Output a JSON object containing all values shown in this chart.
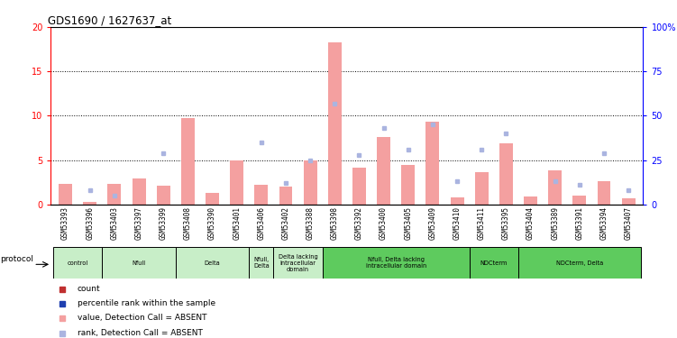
{
  "title": "GDS1690 / 1627637_at",
  "samples": [
    "GSM53393",
    "GSM53396",
    "GSM53403",
    "GSM53397",
    "GSM53399",
    "GSM53408",
    "GSM53390",
    "GSM53401",
    "GSM53406",
    "GSM53402",
    "GSM53388",
    "GSM53398",
    "GSM53392",
    "GSM53400",
    "GSM53405",
    "GSM53409",
    "GSM53410",
    "GSM53411",
    "GSM53395",
    "GSM53404",
    "GSM53389",
    "GSM53391",
    "GSM53394",
    "GSM53407"
  ],
  "bar_values": [
    2.3,
    0.3,
    2.3,
    2.9,
    2.1,
    9.7,
    1.3,
    5.0,
    2.2,
    2.0,
    5.0,
    18.3,
    4.2,
    7.6,
    4.5,
    9.3,
    0.8,
    3.6,
    6.9,
    0.9,
    3.8,
    1.0,
    2.6,
    0.7
  ],
  "rank_values": [
    0,
    8,
    5,
    0,
    29,
    0,
    0,
    0,
    35,
    12,
    25,
    57,
    28,
    43,
    31,
    45,
    13,
    31,
    40,
    0,
    13,
    11,
    29,
    8
  ],
  "absent_bar": [
    true,
    true,
    true,
    true,
    true,
    true,
    true,
    true,
    true,
    true,
    true,
    true,
    true,
    true,
    true,
    true,
    true,
    true,
    true,
    true,
    true,
    true,
    true,
    true
  ],
  "absent_rank": [
    false,
    true,
    true,
    false,
    true,
    false,
    false,
    false,
    true,
    true,
    true,
    true,
    true,
    true,
    true,
    true,
    true,
    true,
    true,
    false,
    true,
    true,
    true,
    true
  ],
  "groups": [
    {
      "label": "control",
      "start": 0,
      "end": 2,
      "color": "#c8eec8"
    },
    {
      "label": "Nfull",
      "start": 2,
      "end": 5,
      "color": "#c8eec8"
    },
    {
      "label": "Delta",
      "start": 5,
      "end": 8,
      "color": "#c8eec8"
    },
    {
      "label": "Nfull,\nDelta",
      "start": 8,
      "end": 9,
      "color": "#c8eec8"
    },
    {
      "label": "Delta lacking\nintracellular\ndomain",
      "start": 9,
      "end": 11,
      "color": "#c8eec8"
    },
    {
      "label": "Nfull, Delta lacking\nintracellular domain",
      "start": 11,
      "end": 17,
      "color": "#5ecb5e"
    },
    {
      "label": "NDCterm",
      "start": 17,
      "end": 19,
      "color": "#5ecb5e"
    },
    {
      "label": "NDCterm, Delta",
      "start": 19,
      "end": 24,
      "color": "#5ecb5e"
    }
  ],
  "ylim_left": [
    0,
    20
  ],
  "ylim_right": [
    0,
    100
  ],
  "yticks_left": [
    0,
    5,
    10,
    15,
    20
  ],
  "yticks_right": [
    0,
    25,
    50,
    75,
    100
  ],
  "bar_color_absent": "#f4a0a0",
  "bar_color_present": "#c03030",
  "rank_color_absent": "#aab4e0",
  "rank_color_present": "#2040b0",
  "legend_items": [
    {
      "color": "#c03030",
      "label": "count",
      "marker": "s"
    },
    {
      "color": "#2040b0",
      "label": "percentile rank within the sample",
      "marker": "s"
    },
    {
      "color": "#f4a0a0",
      "label": "value, Detection Call = ABSENT",
      "marker": "s"
    },
    {
      "color": "#aab4e0",
      "label": "rank, Detection Call = ABSENT",
      "marker": "s"
    }
  ],
  "xtick_bg": "#d8d8d8"
}
